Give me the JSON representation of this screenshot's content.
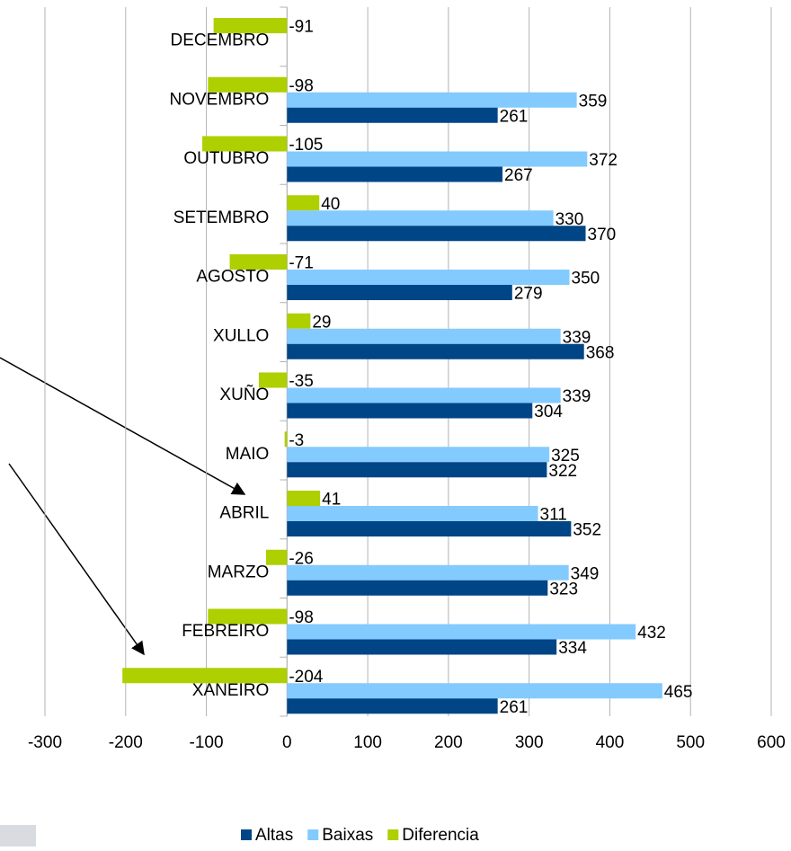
{
  "chart_data": {
    "type": "bar",
    "orientation": "horizontal",
    "categories": [
      "XANEIRO",
      "FEBREIRO",
      "MARZO",
      "ABRIL",
      "MAIO",
      "XUÑO",
      "XULLO",
      "AGOSTO",
      "SETEMBRO",
      "OUTUBRO",
      "NOVEMBRO",
      "DECEMBRO"
    ],
    "series": [
      {
        "name": "Diferencia",
        "color": "#aecf00",
        "values": [
          -204,
          -98,
          -26,
          41,
          -3,
          -35,
          29,
          -71,
          40,
          -105,
          -98,
          -91
        ]
      },
      {
        "name": "Baixas",
        "color": "#83caff",
        "values": [
          465,
          432,
          349,
          311,
          325,
          339,
          339,
          350,
          330,
          372,
          359,
          null
        ]
      },
      {
        "name": "Altas",
        "color": "#004586",
        "values": [
          261,
          334,
          323,
          352,
          322,
          304,
          368,
          279,
          370,
          267,
          261,
          null
        ]
      }
    ],
    "xlim": [
      -300,
      600
    ],
    "xticks": [
      -300,
      -200,
      -100,
      0,
      100,
      200,
      300,
      400,
      500,
      600
    ],
    "grid": true,
    "legend": "bottom"
  }
}
